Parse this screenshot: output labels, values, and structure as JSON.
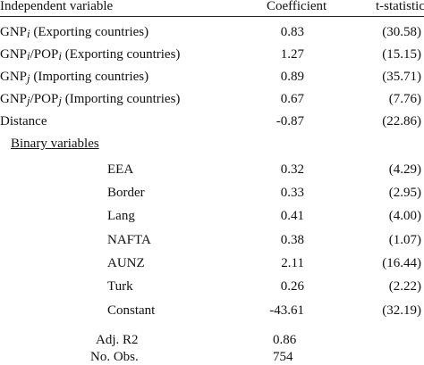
{
  "header": {
    "columns": [
      "Independent variable",
      "Coefficient",
      "t-statistic"
    ]
  },
  "rows": [
    {
      "label": [
        "GNP",
        "i",
        " (Exporting countries)"
      ],
      "coefficient": "0.83",
      "t_statistic": "(30.58)"
    },
    {
      "label": [
        "GNP",
        "i",
        "/POP",
        "i",
        " (Exporting countries)"
      ],
      "coefficient": "1.27",
      "t_statistic": "(15.15)"
    },
    {
      "label": [
        "GNP",
        "j",
        " (Importing countries)"
      ],
      "coefficient": "0.89",
      "t_statistic": "(35.71)"
    },
    {
      "label": [
        "GNP",
        "j",
        "/POP",
        "j",
        " (Importing countries)"
      ],
      "coefficient": "0.67",
      "t_statistic": "(7.76)"
    },
    {
      "label": [
        "Distance"
      ],
      "coefficient": "-0.87",
      "t_statistic": "(22.86)"
    }
  ],
  "section": "Binary variables",
  "binary_rows": [
    {
      "label": "EEA",
      "coefficient": "0.32",
      "t_statistic": "(4.29)"
    },
    {
      "label": "Border",
      "coefficient": "0.33",
      "t_statistic": "(2.95)"
    },
    {
      "label": "Lang",
      "coefficient": "0.41",
      "t_statistic": "(4.00)"
    },
    {
      "label": "NAFTA",
      "coefficient": "0.38",
      "t_statistic": "(1.07)"
    },
    {
      "label": "AUNZ",
      "coefficient": "2.11",
      "t_statistic": "(16.44)"
    },
    {
      "label": "Turk",
      "coefficient": "0.26",
      "t_statistic": "(2.22)"
    },
    {
      "label": "Constant",
      "coefficient": "-43.61",
      "t_statistic": "(32.19)"
    }
  ],
  "stats": [
    {
      "label": "Adj. R2",
      "value": "0.86"
    },
    {
      "label": "No. Obs.",
      "value": "754"
    }
  ]
}
